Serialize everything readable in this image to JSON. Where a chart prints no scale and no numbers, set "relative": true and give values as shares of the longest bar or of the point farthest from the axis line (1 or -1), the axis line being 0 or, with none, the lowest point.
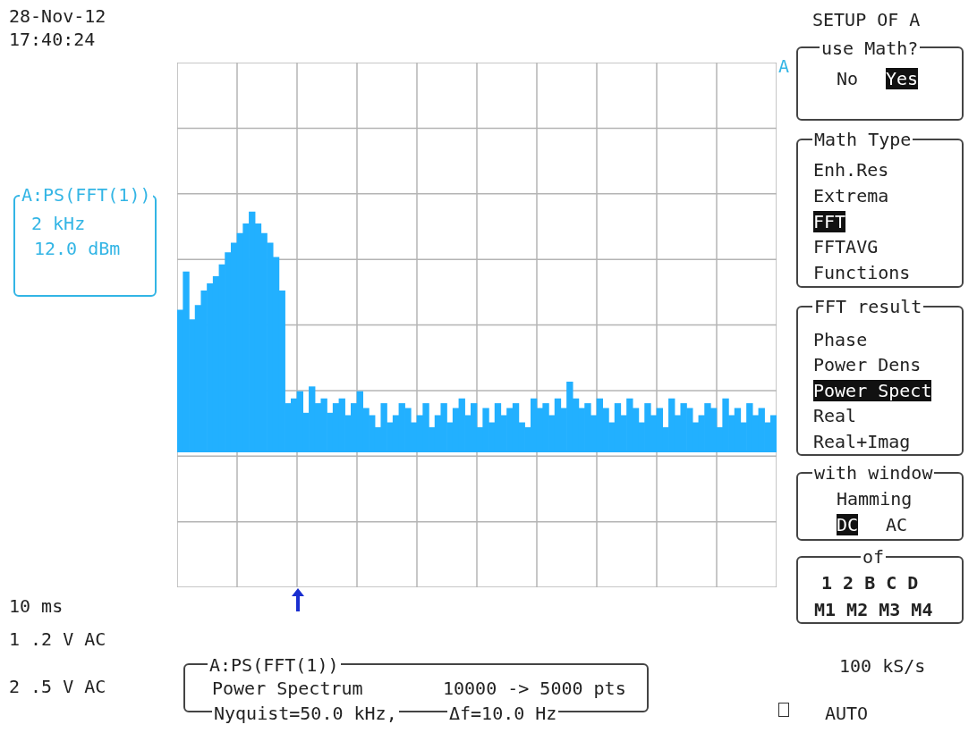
{
  "chart_data": {
    "type": "bar",
    "relative": true,
    "color": "#22b0ff",
    "grid": true,
    "categories": [
      null,
      null,
      null,
      null,
      null,
      null,
      null,
      null,
      null,
      null,
      null,
      null,
      null,
      null,
      null,
      null,
      null,
      null,
      null,
      null,
      null,
      null,
      null,
      null,
      null,
      null,
      null,
      null,
      null,
      null,
      null,
      null,
      null,
      null,
      null,
      null,
      null,
      null,
      null,
      null,
      null,
      null,
      null,
      null,
      null,
      null,
      null,
      null,
      null,
      null,
      null,
      null,
      null,
      null,
      null,
      null,
      null,
      null,
      null,
      null,
      null,
      null,
      null,
      null,
      null,
      null,
      null,
      null,
      null,
      null,
      null,
      null,
      null,
      null,
      null,
      null,
      null,
      null,
      null,
      null,
      null,
      null,
      null,
      null,
      null,
      null,
      null,
      null,
      null,
      null,
      null,
      null,
      null,
      null,
      null,
      null,
      null,
      null,
      null,
      null
    ],
    "values": [
      0.59,
      0.75,
      0.55,
      0.61,
      0.67,
      0.7,
      0.73,
      0.78,
      0.83,
      0.87,
      0.91,
      0.95,
      1.0,
      0.95,
      0.91,
      0.87,
      0.81,
      0.67,
      0.2,
      0.22,
      0.25,
      0.16,
      0.27,
      0.2,
      0.22,
      0.16,
      0.2,
      0.22,
      0.15,
      0.2,
      0.25,
      0.18,
      0.15,
      0.1,
      0.2,
      0.12,
      0.15,
      0.2,
      0.18,
      0.12,
      0.15,
      0.2,
      0.1,
      0.15,
      0.2,
      0.12,
      0.18,
      0.22,
      0.15,
      0.2,
      0.1,
      0.18,
      0.12,
      0.2,
      0.15,
      0.18,
      0.2,
      0.12,
      0.1,
      0.22,
      0.18,
      0.2,
      0.15,
      0.22,
      0.18,
      0.29,
      0.22,
      0.18,
      0.2,
      0.15,
      0.22,
      0.18,
      0.12,
      0.2,
      0.15,
      0.22,
      0.18,
      0.12,
      0.2,
      0.15,
      0.18,
      0.1,
      0.22,
      0.15,
      0.2,
      0.18,
      0.12,
      0.15,
      0.2,
      0.18,
      0.1,
      0.22,
      0.15,
      0.18,
      0.12,
      0.2,
      0.15,
      0.18,
      0.12,
      0.15
    ],
    "annotations": [
      "28-Nov-12",
      "17:40:24",
      "SETUP OF A",
      "use Math?",
      "No",
      "Yes",
      "Math Type",
      "Enh.Res",
      "Extrema",
      "FFT",
      "FFTAVG",
      "Functions",
      "FFT result",
      "Phase",
      "Power Dens",
      "Power Spect",
      "Real",
      "Real+Imag",
      "with window",
      "Hamming",
      "DC",
      "AC",
      "of",
      "1 2 B C D",
      "M1 M2 M3 M4",
      "A:PS(FFT(1))",
      "2 kHz",
      "12.0 dBm",
      "10 ms",
      "1 .2 V AC",
      "2 .5 V AC",
      "A:PS(FFT(1))",
      "Power Spectrum",
      "10000 -> 5000 pts",
      "Nyquist=50.0 kHz,",
      "Δf=10.0 Hz",
      "100 kS/s",
      "AUTO",
      "A"
    ]
  }
}
